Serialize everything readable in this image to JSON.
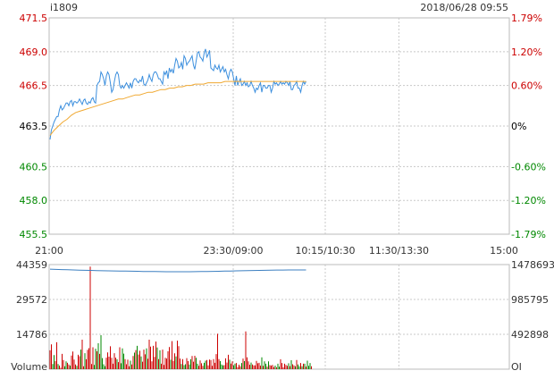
{
  "header": {
    "symbol": "i1809",
    "datetime": "2018/06/28 09:55"
  },
  "colors": {
    "up": "#cc0000",
    "down": "#008800",
    "flat": "#000000",
    "price_line": "#3c8fde",
    "avg_line": "#f0a830",
    "grid": "#c8c8c8",
    "frame": "#bbbbbb",
    "oi_line": "#3c7fc0"
  },
  "chart_data": [
    {
      "type": "line",
      "name": "price",
      "y_ticks_left": [
        "471.5",
        "469.0",
        "466.5",
        "463.5",
        "460.5",
        "458.0",
        "455.5"
      ],
      "y_ticks_right": [
        "1.79%",
        "1.20%",
        "0.60%",
        "0%",
        "-0.60%",
        "-1.20%",
        "-1.79%"
      ],
      "ylim": [
        455.5,
        471.5
      ],
      "base_price": 463.5,
      "x_ticks": [
        "21:00",
        "23:30/09:00",
        "10:15/10:30",
        "11:30/13:30",
        "15:00"
      ],
      "x_total_minutes": 375,
      "price_series": [
        462.5,
        463.2,
        463.5,
        463.8,
        464.0,
        464.2,
        464.2,
        464.7,
        465.0,
        464.7,
        464.8,
        465.0,
        465.2,
        465.2,
        465.0,
        465.3,
        465.4,
        465.0,
        465.3,
        465.3,
        465.2,
        465.3,
        465.5,
        465.3,
        465.1,
        465.4,
        465.5,
        465.2,
        465.1,
        465.3,
        465.2,
        465.5,
        465.6,
        465.3,
        465.2,
        466.5,
        466.7,
        466.8,
        467.5,
        467.3,
        467.0,
        466.5,
        467.2,
        467.5,
        467.3,
        466.7,
        466.0,
        466.2,
        466.8,
        467.3,
        467.5,
        467.3,
        466.5,
        466.3,
        466.5,
        466.3,
        466.5,
        466.7,
        466.5,
        466.3,
        466.7,
        466.3,
        466.8,
        467.0,
        467.0,
        466.8,
        466.7,
        466.9,
        466.8,
        467.2,
        466.6,
        466.5,
        466.7,
        466.9,
        467.3,
        467.0,
        466.8,
        467.3,
        467.5,
        467.5,
        467.3,
        467.0,
        467.0,
        466.8,
        466.6,
        467.5,
        467.3,
        467.6,
        467.0,
        467.8,
        467.5,
        467.7,
        467.4,
        468.0,
        468.5,
        468.3,
        467.8,
        467.9,
        468.2,
        467.7,
        468.7,
        468.5,
        468.0,
        468.2,
        468.3,
        468.5,
        468.7,
        468.0,
        467.7,
        468.3,
        468.9,
        469.0,
        468.6,
        468.5,
        468.3,
        468.9,
        469.2,
        468.6,
        468.8,
        469.1,
        467.8,
        467.7,
        467.6,
        468.0,
        467.8,
        467.7,
        468.0,
        467.5,
        467.7,
        467.9,
        467.5,
        467.7,
        467.3,
        467.0,
        467.5,
        467.7,
        467.5,
        467.0,
        466.5,
        467.2,
        466.5,
        466.8,
        467.0,
        466.5,
        466.6,
        466.8,
        466.5,
        466.7,
        466.4,
        466.5,
        466.8,
        466.5,
        466.3,
        466.0,
        466.3,
        466.2,
        466.5,
        466.7,
        466.0,
        466.5,
        466.5,
        466.3,
        466.3,
        466.5,
        466.5,
        466.0,
        466.3,
        466.8,
        466.6,
        466.7,
        466.5,
        466.6,
        466.8,
        466.6,
        466.7,
        466.6,
        466.8,
        466.7,
        466.5,
        466.8,
        466.2,
        466.2,
        466.5,
        466.6,
        466.8,
        466.3,
        466.3,
        466.0,
        466.5,
        466.8,
        466.6,
        466.8
      ],
      "avg_series": [
        462.8,
        463.2,
        463.5,
        463.8,
        464.0,
        464.3,
        464.5,
        464.6,
        464.7,
        464.8,
        464.9,
        465.0,
        465.1,
        465.2,
        465.3,
        465.4,
        465.5,
        465.5,
        465.6,
        465.7,
        465.8,
        465.8,
        465.9,
        466.0,
        466.0,
        466.1,
        466.2,
        466.2,
        466.3,
        466.3,
        466.4,
        466.4,
        466.5,
        466.5,
        466.6,
        466.6,
        466.6,
        466.7,
        466.7,
        466.7,
        466.7,
        466.8,
        466.8,
        466.8,
        466.8,
        466.8,
        466.8,
        466.8,
        466.8,
        466.8,
        466.8,
        466.8,
        466.8,
        466.8,
        466.8,
        466.8,
        466.8,
        466.8,
        466.8,
        466.8,
        466.8
      ]
    },
    {
      "type": "bar",
      "name": "volume",
      "label": "Volume",
      "right_label": "OI",
      "y_ticks_left": [
        "44359",
        "29572",
        "14786"
      ],
      "y_ticks_right": [
        "1478693",
        "985795",
        "492898"
      ],
      "ylim": [
        0,
        44359
      ],
      "volume_values": [
        8000,
        10500,
        2200,
        6000,
        3400,
        11400,
        2200,
        1500,
        600,
        6500,
        3900,
        1200,
        3300,
        2700,
        2000,
        1500,
        5800,
        7500,
        4100,
        2000,
        1400,
        6100,
        5500,
        8300,
        12500,
        1200,
        6800,
        4200,
        8200,
        8900,
        43500,
        2200,
        9300,
        1800,
        8700,
        7600,
        11000,
        6500,
        14400,
        4700,
        2100,
        1300,
        4900,
        7100,
        5300,
        9700,
        4800,
        2300,
        6800,
        4900,
        4200,
        3000,
        9300,
        2500,
        8800,
        6600,
        4300,
        2100,
        4000,
        1200,
        3600,
        2000,
        5600,
        7000,
        8100,
        9900,
        6200,
        7800,
        5400,
        3200,
        8300,
        6300,
        8800,
        4400,
        12500,
        9600,
        3300,
        9900,
        5200,
        11700,
        9200,
        4300,
        8000,
        2300,
        8300,
        1800,
        4800,
        4500,
        7600,
        9400,
        4000,
        11900,
        3500,
        6700,
        5400,
        12100,
        9800,
        4500,
        2200,
        4300,
        1700,
        2100,
        4700,
        3400,
        2000,
        4200,
        5600,
        3200,
        5700,
        4800,
        2300,
        1400,
        3700,
        2500,
        1400,
        2700,
        3600,
        3900,
        1600,
        4100,
        3900,
        1400,
        4300,
        2700,
        6400,
        15000,
        4300,
        3400,
        2000,
        1600,
        1700,
        4600,
        2800,
        6100,
        4000,
        2400,
        3300,
        1600,
        2400,
        2600,
        900,
        1900,
        1200,
        2600,
        4500,
        3400,
        16000,
        5000,
        3300,
        1900,
        2800,
        2000,
        1600,
        1600,
        3500,
        2500,
        2700,
        1500,
        5000,
        1400,
        3300,
        2300,
        1100,
        3300,
        1700,
        1500,
        1800,
        900,
        1500,
        800,
        2300,
        1100,
        4200,
        2600,
        800,
        2300,
        1800,
        1400,
        2500,
        1300,
        3800,
        2100,
        1600,
        1200,
        3900,
        2000,
        1200,
        2600,
        1200,
        2300,
        2300,
        1100,
        3600,
        1400,
        2600,
        1200
      ],
      "volume_dirs": [
        "up",
        "up",
        "down",
        "down",
        "up",
        "up",
        "down",
        "up",
        "up",
        "up",
        "up",
        "down",
        "down",
        "up",
        "up",
        "down",
        "up",
        "up",
        "up",
        "up",
        "down",
        "up",
        "up",
        "down",
        "up",
        "up",
        "down",
        "up",
        "up",
        "up",
        "up",
        "up",
        "up",
        "down",
        "down",
        "up",
        "down",
        "up",
        "down",
        "down",
        "down",
        "down",
        "up",
        "up",
        "up",
        "up",
        "up",
        "up",
        "up",
        "up",
        "down",
        "up",
        "up",
        "down",
        "down",
        "down",
        "up",
        "up",
        "up",
        "up",
        "down",
        "up",
        "up",
        "down",
        "up",
        "down",
        "up",
        "up",
        "down",
        "up",
        "up",
        "up",
        "down",
        "up",
        "up",
        "up",
        "up",
        "up",
        "up",
        "up",
        "down",
        "up",
        "down",
        "up",
        "up",
        "up",
        "up",
        "up",
        "up",
        "up",
        "down",
        "up",
        "up",
        "up",
        "down",
        "up",
        "up",
        "up",
        "down",
        "up",
        "down",
        "down",
        "up",
        "up",
        "down",
        "down",
        "up",
        "up",
        "up",
        "down",
        "down",
        "up",
        "up",
        "up",
        "up",
        "down",
        "down",
        "up",
        "up",
        "up",
        "up",
        "up",
        "up",
        "up",
        "up",
        "up",
        "up",
        "down",
        "down",
        "down",
        "up",
        "up",
        "up",
        "up",
        "down",
        "up",
        "up",
        "down",
        "down",
        "up",
        "up",
        "up",
        "up",
        "down",
        "up",
        "down",
        "up",
        "up",
        "up",
        "up",
        "down",
        "up",
        "up",
        "up",
        "up",
        "up",
        "up",
        "up",
        "down",
        "up",
        "down",
        "down",
        "up",
        "down",
        "up",
        "up",
        "up",
        "up",
        "down",
        "up",
        "down",
        "down",
        "up",
        "up",
        "up",
        "up",
        "up",
        "up",
        "down",
        "up",
        "down",
        "up",
        "up",
        "down",
        "up",
        "down",
        "down",
        "up",
        "down",
        "up",
        "down",
        "up",
        "down",
        "down",
        "down",
        "up"
      ],
      "oi_series": [
        1414000,
        1410000,
        1408000,
        1405000,
        1403000,
        1400000,
        1398000,
        1396000,
        1394000,
        1392000,
        1390000,
        1389000,
        1388000,
        1386000,
        1385000,
        1384000,
        1382000,
        1381000,
        1380000,
        1379000,
        1378000,
        1378000,
        1377000,
        1377000,
        1378000,
        1379000,
        1380000,
        1381000,
        1383000,
        1384000,
        1386000,
        1388000,
        1390000,
        1391000,
        1393000,
        1395000,
        1397000,
        1398000,
        1400000,
        1401000,
        1402000,
        1403000,
        1403000,
        1403000,
        1403000
      ]
    }
  ]
}
